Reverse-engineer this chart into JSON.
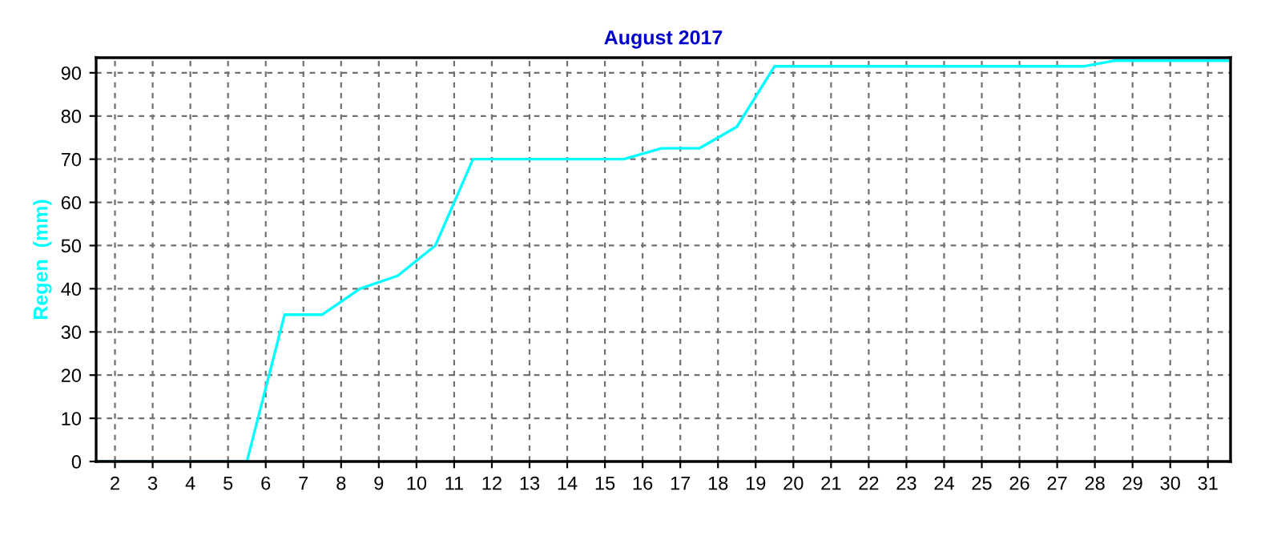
{
  "chart_data": {
    "type": "line",
    "title": "August 2017",
    "ylabel": "Regen  (mm)",
    "x": [
      1.5,
      5.5,
      6.5,
      7.5,
      8.5,
      9.5,
      10.5,
      11.5,
      15.5,
      16.5,
      17.5,
      18.5,
      19.5,
      27.7,
      28.5,
      31.6
    ],
    "series": [
      {
        "color": "#00ffff",
        "values": [
          0,
          0,
          34,
          34,
          40,
          43,
          50,
          70,
          70,
          72.5,
          72.5,
          77.5,
          91.5,
          91.5,
          92.8,
          92.8
        ]
      }
    ],
    "xlim": [
      1.5,
      31.6
    ],
    "xticks": [
      2,
      3,
      4,
      5,
      6,
      7,
      8,
      9,
      10,
      11,
      12,
      13,
      14,
      15,
      16,
      17,
      18,
      19,
      20,
      21,
      22,
      23,
      24,
      25,
      26,
      27,
      28,
      29,
      30,
      31
    ],
    "ylim": [
      0,
      93.5
    ],
    "yticks": [
      0,
      10,
      20,
      30,
      40,
      50,
      60,
      70,
      80,
      90
    ],
    "grid": true,
    "line_style": "solid",
    "marker": "none"
  }
}
